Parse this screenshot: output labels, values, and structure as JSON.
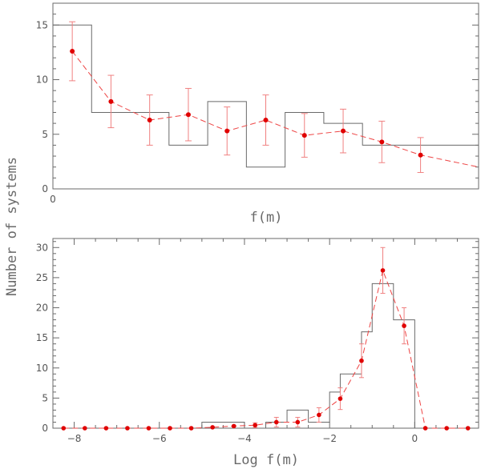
{
  "ylabel": "Number of systems",
  "chart_data": [
    {
      "type": "histogram",
      "xlabel": "f(m)",
      "ylim": [
        0,
        17
      ],
      "yticks": [
        0,
        5,
        10,
        15
      ],
      "x_tick_labels": [
        "0"
      ],
      "histogram": {
        "bins": [
          "1",
          "2",
          "3",
          "4",
          "5",
          "6",
          "7",
          "8",
          "9",
          "10"
        ],
        "counts": [
          15,
          7,
          7,
          4,
          8,
          2,
          7,
          6,
          4,
          4
        ]
      },
      "series": [
        {
          "style": "points-with-errors-dashed",
          "x": [
            "1",
            "2",
            "3",
            "4",
            "5",
            "6",
            "7",
            "8",
            "9",
            "10"
          ],
          "y": [
            12.6,
            8.0,
            6.3,
            6.8,
            5.3,
            6.3,
            4.9,
            5.3,
            4.3,
            3.1
          ],
          "err": [
            2.7,
            2.4,
            2.3,
            2.4,
            2.2,
            2.3,
            2.0,
            2.0,
            1.9,
            1.6
          ]
        }
      ]
    },
    {
      "type": "histogram",
      "xlabel": "Log f(m)",
      "xlim": [
        -8.5,
        1.5
      ],
      "ylim": [
        0,
        31.5
      ],
      "xticks": [
        -8,
        -6,
        -4,
        -2,
        0
      ],
      "yticks": [
        0,
        5,
        10,
        15,
        20,
        25,
        30
      ],
      "histogram": {
        "bin_edges": [
          -5.0,
          -4.0,
          -3.5,
          -3.0,
          -2.5,
          -2.0,
          -1.75,
          -1.25,
          -1.0,
          -0.5,
          0.0
        ],
        "counts": [
          1,
          0,
          1,
          3,
          1,
          6,
          9,
          16,
          24,
          18
        ]
      },
      "series": [
        {
          "style": "points-with-errors-dashed",
          "x": [
            -8.25,
            -7.75,
            -7.25,
            -6.75,
            -6.25,
            -5.75,
            -5.25,
            -4.75,
            -4.25,
            -3.75,
            -3.25,
            -2.75,
            -2.25,
            -1.75,
            -1.25,
            -0.75,
            -0.25,
            0.25,
            0.75,
            1.25
          ],
          "y": [
            0,
            0,
            0,
            0,
            0,
            0,
            0,
            0.15,
            0.35,
            0.5,
            1.0,
            1.0,
            2.2,
            4.9,
            11.2,
            26.2,
            17.0,
            0,
            0,
            0
          ],
          "err": [
            0,
            0,
            0,
            0,
            0,
            0,
            0,
            0,
            0,
            0.4,
            0.8,
            0.8,
            1.2,
            1.8,
            2.8,
            3.8,
            3.0,
            0,
            0,
            0
          ]
        }
      ]
    }
  ],
  "colors": {
    "frame": "#6a6a6a",
    "points": "#e00000",
    "errorbars": "#f08080",
    "dashed_line": "#ee4444"
  }
}
